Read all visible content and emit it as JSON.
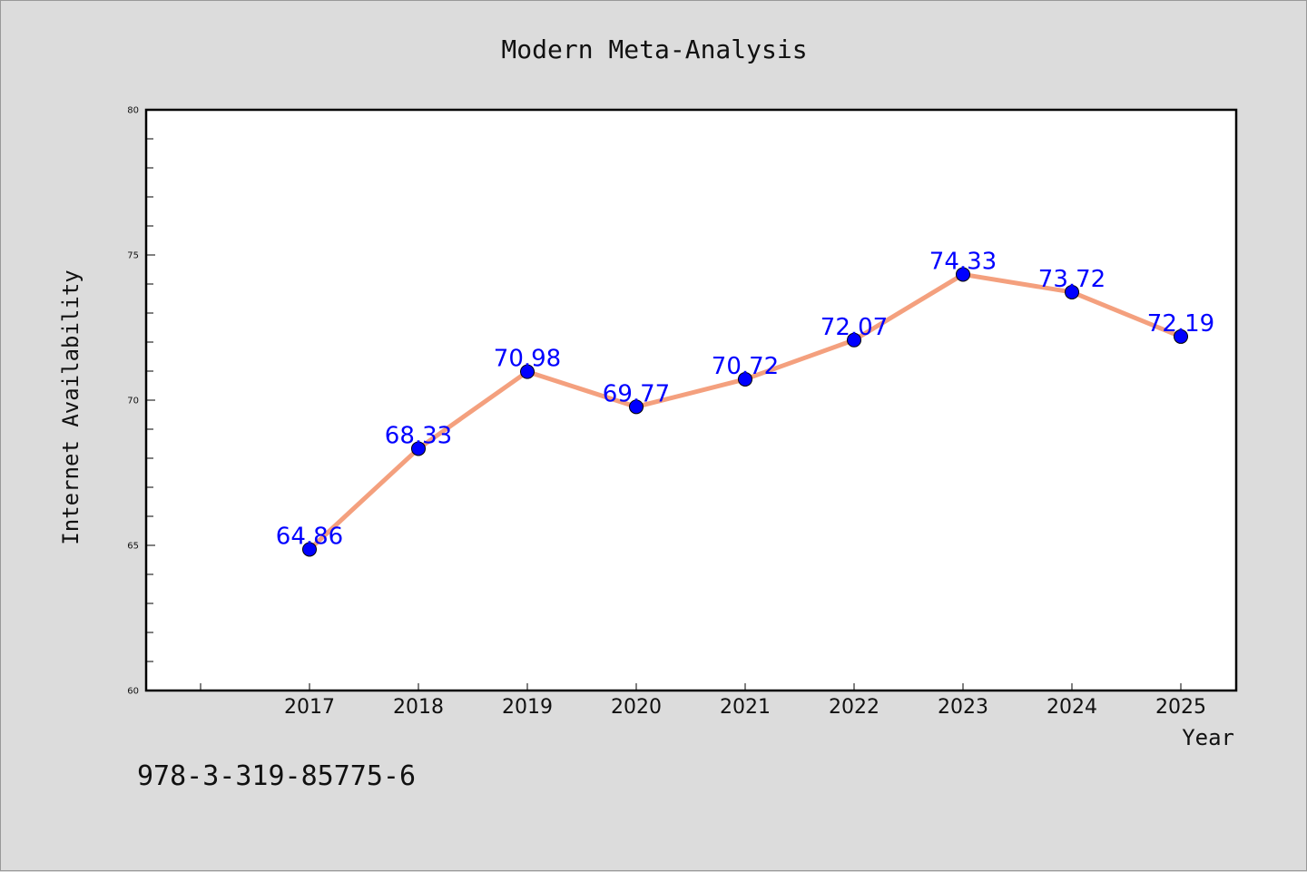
{
  "chart_data": {
    "type": "line",
    "title": "Modern Meta-Analysis",
    "xlabel": "Year",
    "ylabel": "Internet Availability",
    "categories": [
      "2017",
      "2018",
      "2019",
      "2020",
      "2021",
      "2022",
      "2023",
      "2024",
      "2025"
    ],
    "series": [
      {
        "values": [
          64.86,
          68.33,
          70.98,
          69.77,
          70.72,
          72.07,
          74.33,
          73.72,
          72.19
        ],
        "data_labels": [
          "64.86",
          "68.33",
          "70.98",
          "69.77",
          "70.72",
          "72.07",
          "74.33",
          "73.72",
          "72.19"
        ],
        "line_color": "#f4a07e",
        "marker_color": "#0000ff"
      }
    ],
    "ylim": [
      60,
      80
    ],
    "yticks": [
      60,
      65,
      70,
      75,
      80
    ],
    "ytick_labels": [
      "60",
      "65",
      "70",
      "75",
      "80"
    ],
    "grid": false,
    "label_color": "#0000ff"
  },
  "footnote": "978-3-319-85775-6"
}
